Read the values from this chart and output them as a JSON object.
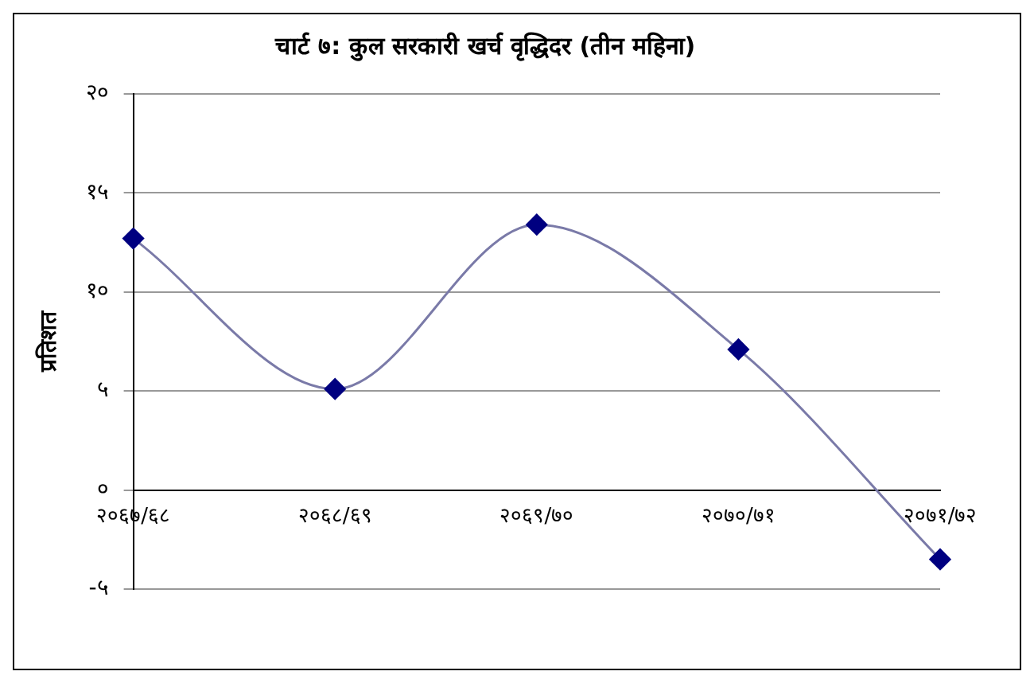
{
  "chart_data": {
    "type": "line",
    "title": "चार्ट ७: कुल सरकारी खर्च वृद्धिदर (तीन महिना)",
    "ylabel": "प्रतिशत",
    "categories": [
      "२०६७/६८",
      "२०६८/६९",
      "२०६९/७०",
      "२०७०/७१",
      "२०७१/७२"
    ],
    "series": [
      {
        "color": "#000080",
        "values": [
          12.7,
          5.1,
          13.4,
          7.1,
          -3.5
        ]
      }
    ],
    "ylim": [
      -5,
      20
    ],
    "yticks": [
      {
        "value": -5,
        "label": "-५"
      },
      {
        "value": 0,
        "label": "०"
      },
      {
        "value": 5,
        "label": "५"
      },
      {
        "value": 10,
        "label": "१०"
      },
      {
        "value": 15,
        "label": "१५"
      },
      {
        "value": 20,
        "label": "२०"
      }
    ],
    "grid": "y",
    "legend": false,
    "marker": "diamond",
    "line_style": "solid"
  }
}
